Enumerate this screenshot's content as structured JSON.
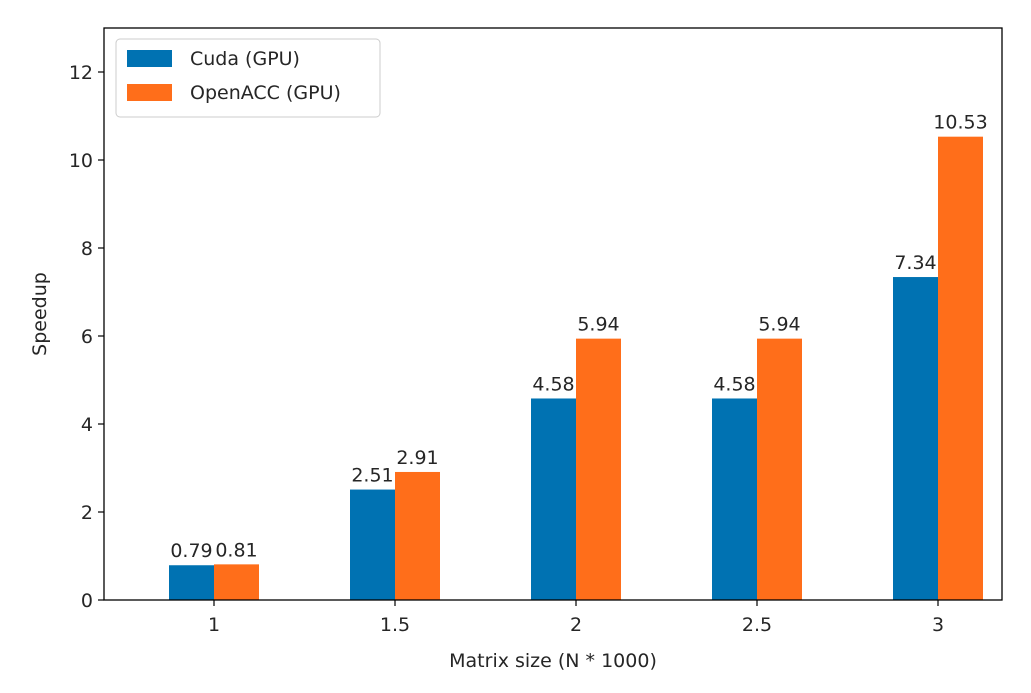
{
  "chart_data": {
    "type": "bar",
    "title": "",
    "xlabel": "Matrix size (N * 1000)",
    "ylabel": "Speedup",
    "categories": [
      "1",
      "1.5",
      "2",
      "2.5",
      "3"
    ],
    "series": [
      {
        "name": "Cuda (GPU)",
        "color": "#0072b2",
        "values": [
          0.79,
          2.51,
          4.58,
          4.58,
          7.34
        ],
        "labels": [
          "0.79",
          "2.51",
          "4.58",
          "4.58",
          "7.34"
        ]
      },
      {
        "name": "OpenACC (GPU)",
        "color": "#ff6e1a",
        "values": [
          0.81,
          2.91,
          5.94,
          5.94,
          10.53
        ],
        "labels": [
          "0.81",
          "2.91",
          "5.94",
          "5.94",
          "10.53"
        ]
      }
    ],
    "ylim": [
      0,
      13
    ],
    "yticks": [
      0,
      2,
      4,
      6,
      8,
      10,
      12
    ],
    "grid": false,
    "legend_position": "upper-left"
  }
}
